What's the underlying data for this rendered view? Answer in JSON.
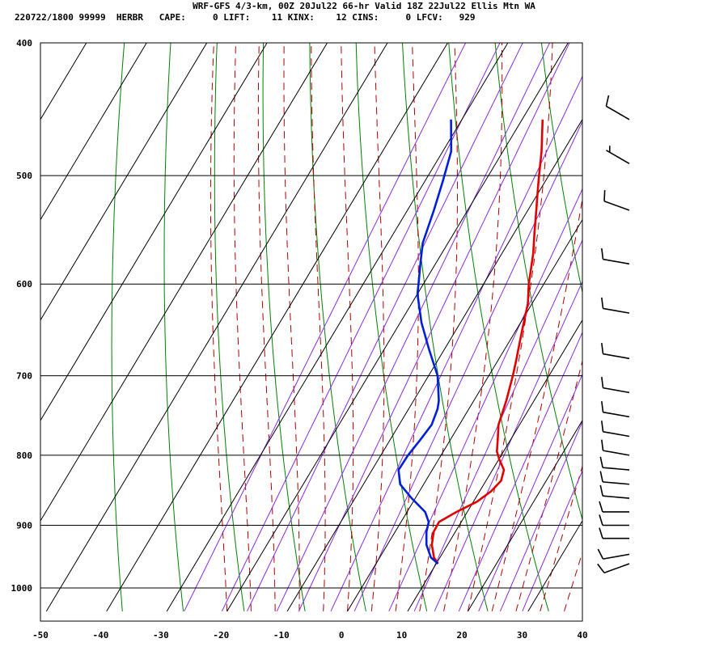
{
  "header": {
    "line1": "WRF-GFS 4/3-km, 00Z 20Jul22 66-hr Valid 18Z 22Jul22 Ellis Mtn WA",
    "line2": "220722/1800 99999  HERBR   CAPE:     0 LIFT:    11 KINX:    12 CINS:     0 LFCV:   929"
  },
  "colors": {
    "temperature": "#e00000",
    "dewpoint": "#0020d8",
    "isotherm": "#000000",
    "isobar": "#000000",
    "dry_adiabat": "#008000",
    "moist_adiabat": "#b00000",
    "mixing_ratio": "#8a2be2",
    "wind_barb": "#000000"
  },
  "chart_data": {
    "type": "line",
    "diagram": "skew-T log-P",
    "x_axis": {
      "units": "degC",
      "range": [
        -50,
        40
      ],
      "ticks": [
        "-50",
        "-40",
        "-30",
        "-20",
        "-10",
        "0",
        "10",
        "20",
        "30",
        "40"
      ]
    },
    "y_axis": {
      "units": "hPa",
      "log_scale": true,
      "range": [
        1040,
        400
      ],
      "ticks": [
        "400",
        "500",
        "600",
        "700",
        "800",
        "900",
        "1000"
      ]
    },
    "grid": true,
    "series": [
      {
        "key": "temperature",
        "points": [
          [
            960,
            10.3
          ],
          [
            950,
            9.0
          ],
          [
            930,
            7.4
          ],
          [
            910,
            6.4
          ],
          [
            895,
            6.3
          ],
          [
            880,
            8.2
          ],
          [
            865,
            10.6
          ],
          [
            850,
            11.9
          ],
          [
            835,
            12.5
          ],
          [
            820,
            11.9
          ],
          [
            805,
            10.0
          ],
          [
            795,
            8.9
          ],
          [
            780,
            7.9
          ],
          [
            760,
            6.5
          ],
          [
            730,
            5.4
          ],
          [
            700,
            4.0
          ],
          [
            680,
            2.9
          ],
          [
            650,
            1.1
          ],
          [
            620,
            -0.7
          ],
          [
            600,
            -2.5
          ],
          [
            570,
            -4.8
          ],
          [
            550,
            -6.7
          ],
          [
            530,
            -8.6
          ],
          [
            510,
            -10.6
          ],
          [
            500,
            -11.6
          ],
          [
            480,
            -13.6
          ],
          [
            455,
            -16.6
          ]
        ]
      },
      {
        "key": "dewpoint",
        "points": [
          [
            960,
            10.3
          ],
          [
            950,
            8.5
          ],
          [
            930,
            6.5
          ],
          [
            910,
            5.2
          ],
          [
            895,
            4.6
          ],
          [
            880,
            3.0
          ],
          [
            860,
            -0.6
          ],
          [
            840,
            -3.9
          ],
          [
            820,
            -5.6
          ],
          [
            800,
            -5.5
          ],
          [
            780,
            -5.0
          ],
          [
            760,
            -4.6
          ],
          [
            740,
            -5.2
          ],
          [
            730,
            -5.8
          ],
          [
            700,
            -8.5
          ],
          [
            670,
            -12.5
          ],
          [
            640,
            -16.5
          ],
          [
            610,
            -20.0
          ],
          [
            600,
            -20.8
          ],
          [
            580,
            -22.5
          ],
          [
            560,
            -24.2
          ],
          [
            530,
            -25.6
          ],
          [
            505,
            -27.0
          ],
          [
            480,
            -28.6
          ],
          [
            455,
            -31.8
          ]
        ]
      }
    ],
    "wind_barbs": [
      {
        "p": 455,
        "dir": 300,
        "kt": 10
      },
      {
        "p": 490,
        "dir": 300,
        "kt": 5
      },
      {
        "p": 530,
        "dir": 290,
        "kt": 10
      },
      {
        "p": 580,
        "dir": 280,
        "kt": 10
      },
      {
        "p": 630,
        "dir": 280,
        "kt": 10
      },
      {
        "p": 680,
        "dir": 280,
        "kt": 10
      },
      {
        "p": 720,
        "dir": 280,
        "kt": 10
      },
      {
        "p": 750,
        "dir": 280,
        "kt": 10
      },
      {
        "p": 775,
        "dir": 280,
        "kt": 10
      },
      {
        "p": 800,
        "dir": 280,
        "kt": 10
      },
      {
        "p": 820,
        "dir": 275,
        "kt": 10
      },
      {
        "p": 840,
        "dir": 275,
        "kt": 10
      },
      {
        "p": 860,
        "dir": 275,
        "kt": 10
      },
      {
        "p": 880,
        "dir": 270,
        "kt": 10
      },
      {
        "p": 900,
        "dir": 270,
        "kt": 10
      },
      {
        "p": 920,
        "dir": 270,
        "kt": 10
      },
      {
        "p": 945,
        "dir": 260,
        "kt": 10
      },
      {
        "p": 960,
        "dir": 250,
        "kt": 10
      }
    ]
  }
}
